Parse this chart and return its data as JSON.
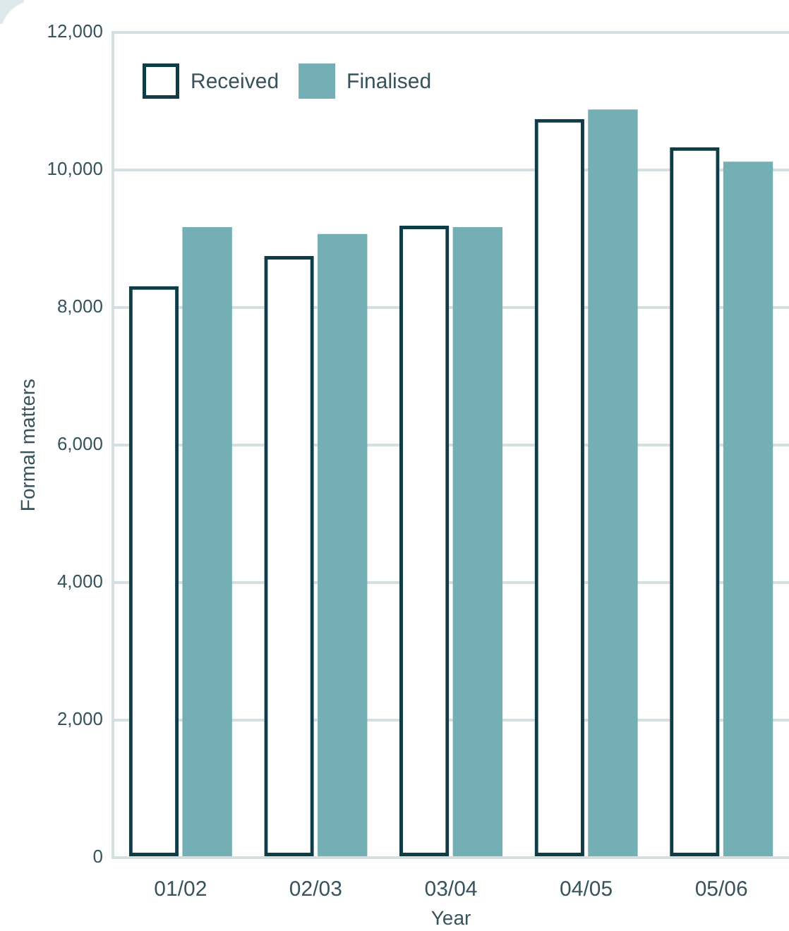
{
  "chart_data": {
    "type": "bar",
    "xlabel": "Year",
    "ylabel": "Formal matters",
    "categories": [
      "01/02",
      "02/03",
      "03/04",
      "04/05",
      "05/06"
    ],
    "series": [
      {
        "name": "Received",
        "color": "#0f3d47",
        "values": [
          8310,
          8750,
          9190,
          10740,
          10330
        ]
      },
      {
        "name": "Finalised",
        "color": "#74afb6",
        "values": [
          9170,
          9070,
          9170,
          10880,
          10120
        ]
      }
    ],
    "ylim": [
      0,
      12000
    ],
    "yticks": [
      0,
      {
        "value": 2000,
        "label": "2,000"
      },
      {
        "value": 4000,
        "label": "4,000"
      },
      {
        "value": 6000,
        "label": "6,000"
      },
      {
        "value": 8000,
        "label": "8,000"
      },
      {
        "value": 10000,
        "label": "10,000"
      },
      {
        "value": 12000,
        "label": "12,000"
      }
    ],
    "grid": "y",
    "legend": "top left"
  }
}
